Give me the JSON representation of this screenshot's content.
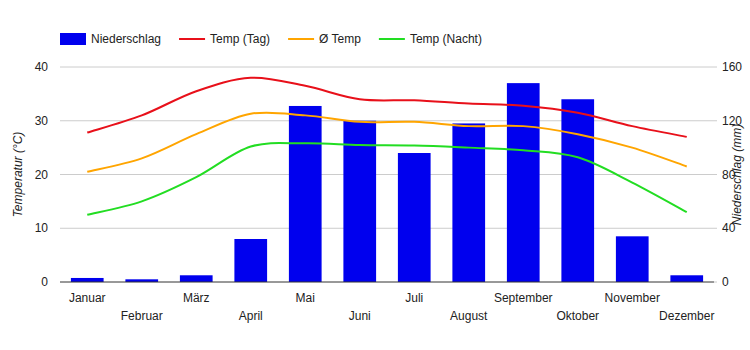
{
  "chart_data": {
    "type": "bar",
    "y_label": "Temperatur (°C)",
    "y2_label": "Niederschlag (mm)",
    "categories": [
      "Januar",
      "Februar",
      "März",
      "April",
      "Mai",
      "Juni",
      "Juli",
      "August",
      "September",
      "Oktober",
      "November",
      "Dezember"
    ],
    "ylim": [
      0,
      40
    ],
    "yticks": [
      0,
      10,
      20,
      30,
      40
    ],
    "y2lim": [
      0,
      160
    ],
    "y2ticks": [
      0,
      40,
      80,
      120,
      160
    ],
    "grid": true,
    "legend": "top",
    "series": [
      {
        "name": "Niederschlag",
        "type": "bar",
        "axis": "y2",
        "color": "#0000ee",
        "values": [
          3,
          2,
          5,
          32,
          131,
          120,
          96,
          118,
          148,
          136,
          34,
          5
        ]
      },
      {
        "name": "Temp (Tag)",
        "type": "line",
        "color": "#e8101a",
        "values": [
          27.8,
          31,
          35.5,
          38,
          36.5,
          34,
          33.8,
          33.2,
          32.8,
          31.5,
          29,
          27
        ]
      },
      {
        "name": "Ø Temp",
        "type": "line",
        "color": "#ffa500",
        "values": [
          20.5,
          23,
          27.5,
          31.3,
          31,
          29.8,
          29.8,
          29,
          29,
          27.5,
          25,
          21.5
        ]
      },
      {
        "name": "Temp (Nacht)",
        "type": "line",
        "color": "#22dd22",
        "values": [
          12.5,
          15,
          19.5,
          25.2,
          25.8,
          25.5,
          25.4,
          25,
          24.5,
          23.2,
          18.5,
          13
        ]
      }
    ]
  }
}
